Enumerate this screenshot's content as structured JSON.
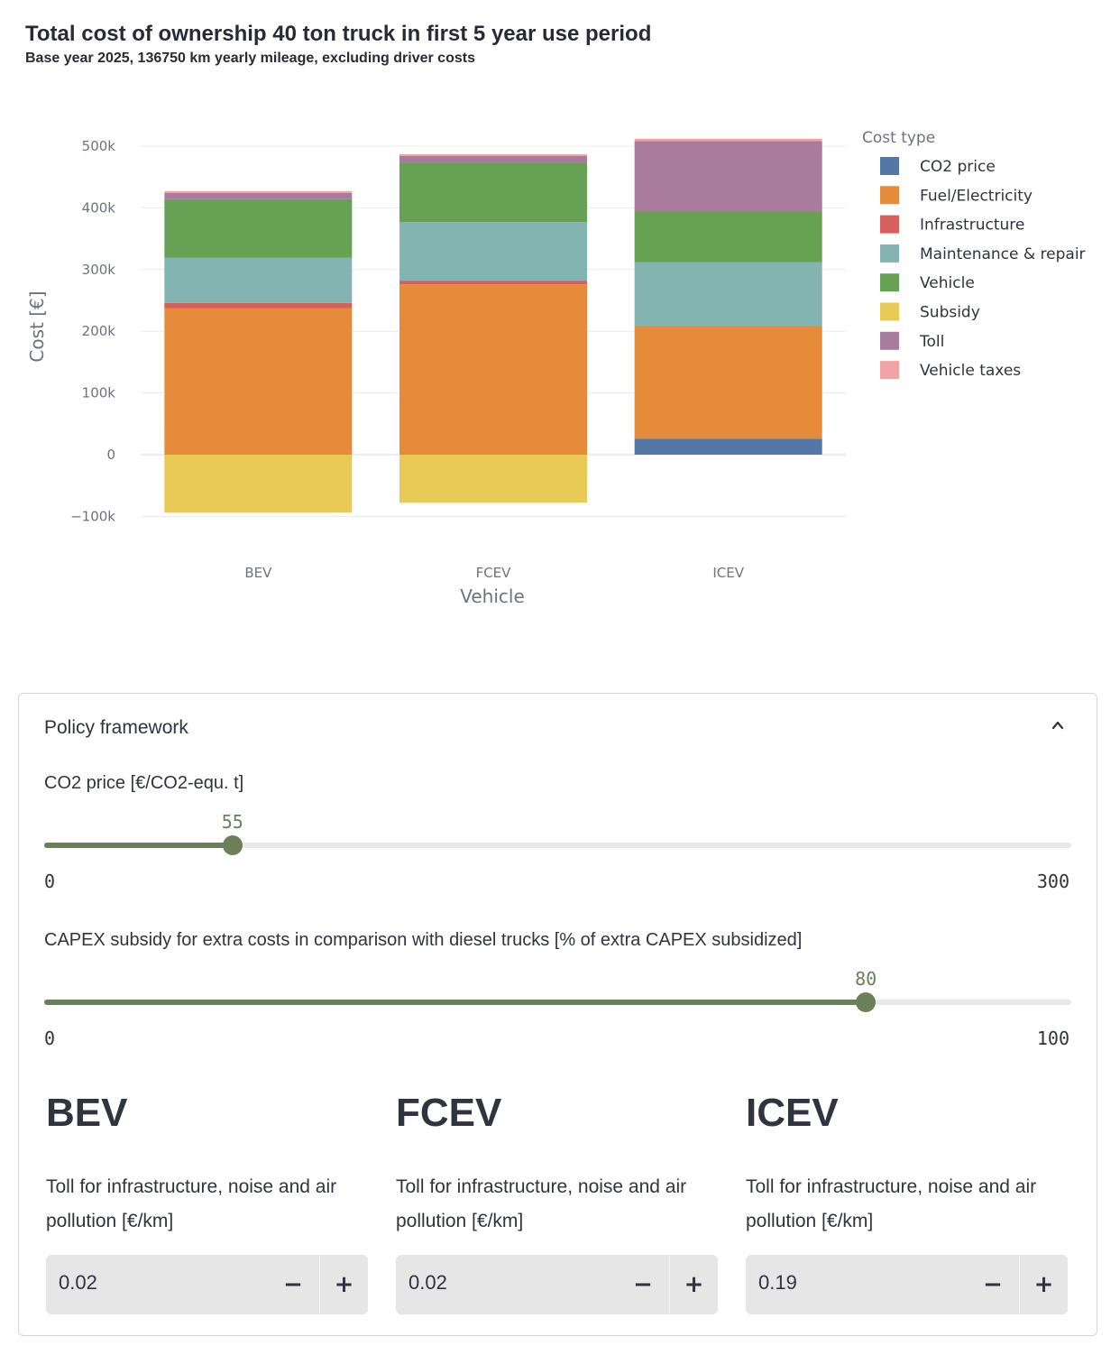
{
  "chart_data": {
    "type": "bar",
    "stacked": true,
    "title": "Total cost of ownership 40 ton truck in first 5 year use period",
    "subtitle": "Base year 2025, 136750 km yearly mileage, excluding driver costs",
    "xlabel": "Vehicle",
    "ylabel": "Cost [€]",
    "categories": [
      "BEV",
      "FCEV",
      "ICEV"
    ],
    "ylim": [
      -110000,
      520000
    ],
    "yticks": [
      -100000,
      0,
      100000,
      200000,
      300000,
      400000,
      500000
    ],
    "ytick_labels": [
      "−100k",
      "0",
      "100k",
      "200k",
      "300k",
      "400k",
      "500k"
    ],
    "legend_title": "Cost type",
    "legend_position": "right",
    "series": [
      {
        "name": "CO2 price",
        "color": "#5577a5",
        "values": [
          0,
          0,
          26000
        ]
      },
      {
        "name": "Fuel/Electricity",
        "color": "#e58b3a",
        "values": [
          237000,
          276000,
          183000
        ]
      },
      {
        "name": "Infrastructure",
        "color": "#d95f5c",
        "values": [
          9000,
          6000,
          0
        ]
      },
      {
        "name": "Maintenance & repair",
        "color": "#84b4b1",
        "values": [
          73000,
          95000,
          103000
        ]
      },
      {
        "name": "Vehicle",
        "color": "#66a154",
        "values": [
          95000,
          96000,
          82000
        ]
      },
      {
        "name": "Subsidy",
        "color": "#e9ca57",
        "values": [
          -94000,
          -78000,
          0
        ]
      },
      {
        "name": "Toll",
        "color": "#a97c9e",
        "values": [
          10000,
          11000,
          114000
        ]
      },
      {
        "name": "Vehicle taxes",
        "color": "#f2a4a5",
        "values": [
          3000,
          3000,
          4000
        ]
      }
    ]
  },
  "policy": {
    "header": "Policy framework",
    "co2": {
      "label": "CO2 price [€/CO2-equ. t]",
      "value": "55",
      "value_num": 55,
      "min": "0",
      "max": "300",
      "max_num": 300
    },
    "capex": {
      "label": "CAPEX subsidy for extra costs in comparison with diesel trucks [% of extra CAPEX subsidized]",
      "value": "80",
      "value_num": 80,
      "min": "0",
      "max": "100",
      "max_num": 100
    }
  },
  "vehicles": [
    {
      "name": "BEV",
      "toll_label": "Toll for infrastructure, noise and air pollution [€/km]",
      "toll_value": "0.02"
    },
    {
      "name": "FCEV",
      "toll_label": "Toll for infrastructure, noise and air pollution [€/km]",
      "toll_value": "0.02"
    },
    {
      "name": "ICEV",
      "toll_label": "Toll for infrastructure, noise and air pollution [€/km]",
      "toll_value": "0.19"
    }
  ],
  "controls": {
    "minus": "−",
    "plus": "+"
  }
}
